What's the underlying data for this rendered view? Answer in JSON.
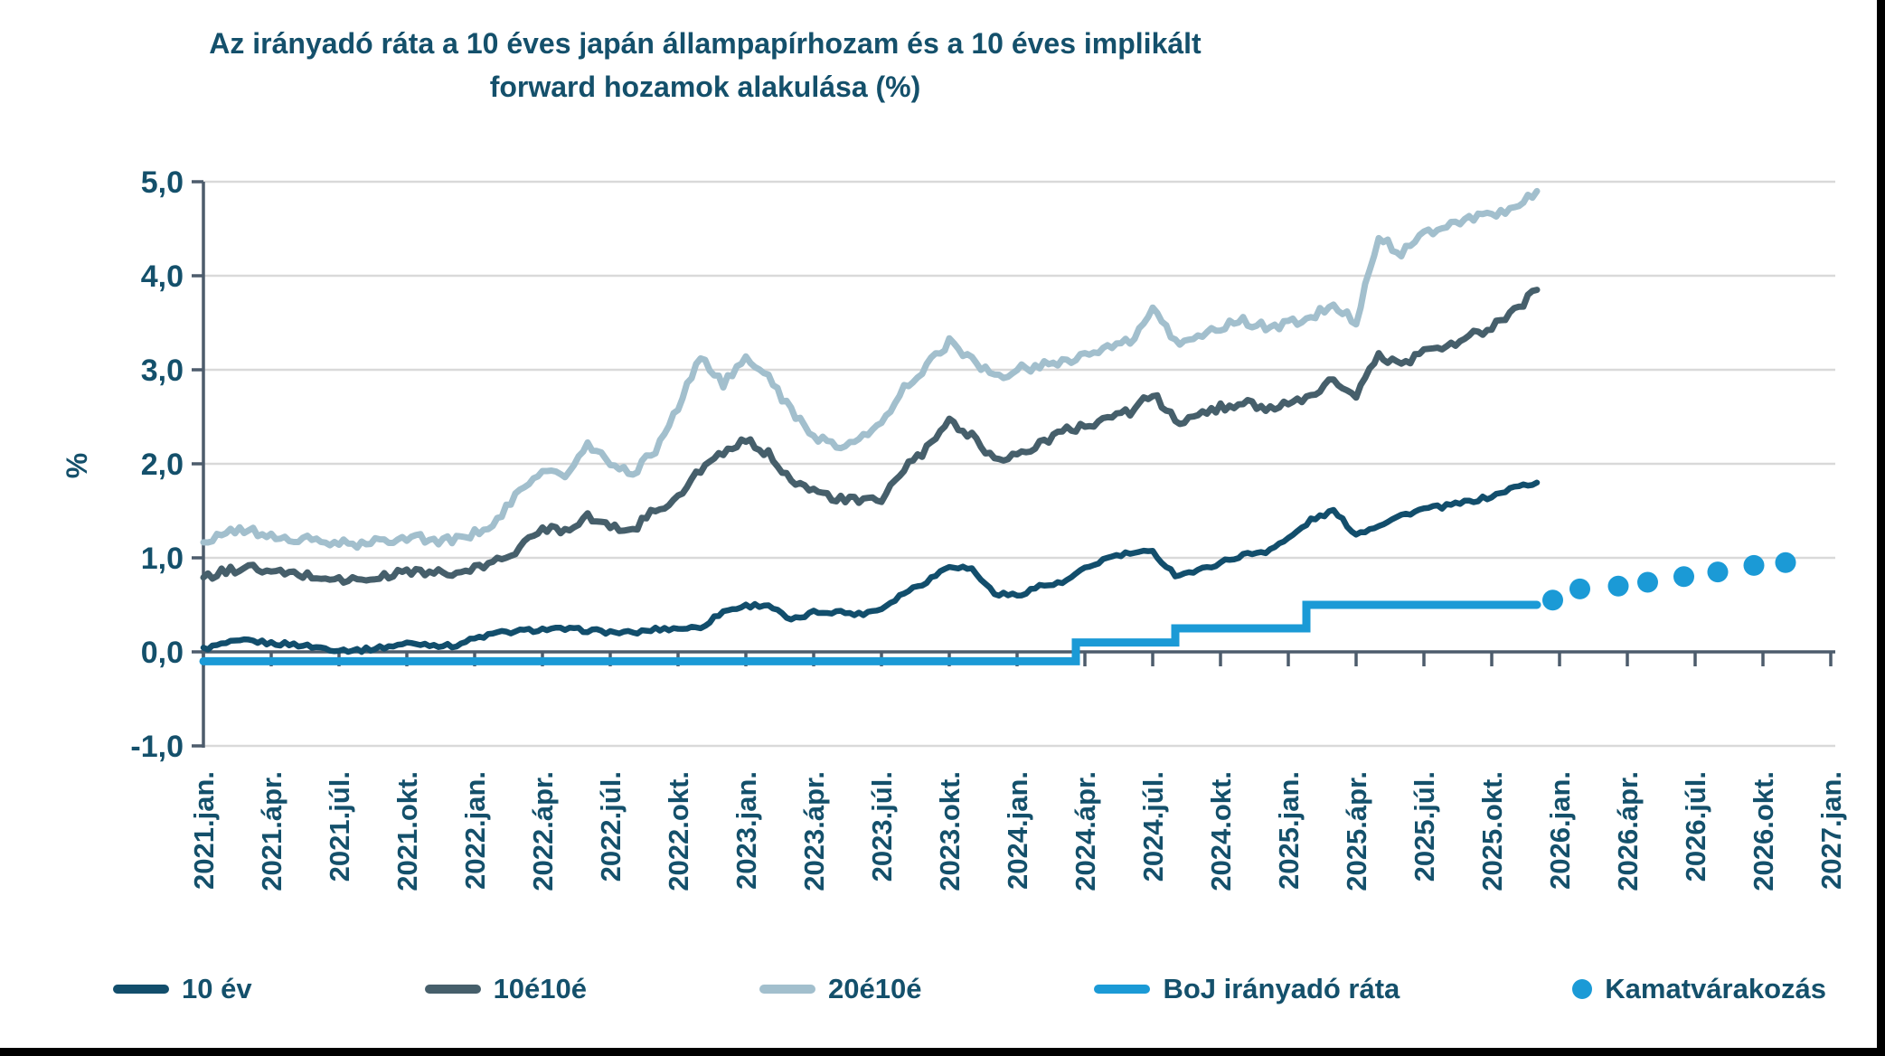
{
  "title": "Az irányadó ráta a 10 éves japán állampapírhozam és a 10 éves implikált\nforward hozamok alakulása (%)",
  "colors": {
    "title_text": "#14506b",
    "series_10y": "#124e6c",
    "series_10e10e": "#465f6b",
    "series_20e10e": "#a2bfcd",
    "boj_rate": "#1b9ad6",
    "expectation_dot": "#1b9ad6",
    "gridline": "#d9d9d9",
    "axis": "#4d5c6c",
    "background": "#ffffff",
    "edge_border": "#000000"
  },
  "y_axis": {
    "unit_label": "%",
    "tick_labels": [
      "5,0",
      "4,0",
      "3,0",
      "2,0",
      "1,0",
      "0,0",
      "-1,0"
    ],
    "tick_values": [
      5,
      4,
      3,
      2,
      1,
      0,
      -1
    ],
    "min": -1,
    "max": 5
  },
  "x_axis": {
    "tick_labels": [
      "2021.jan.",
      "2021.ápr.",
      "2021.júl.",
      "2021.okt.",
      "2022.jan.",
      "2022.ápr.",
      "2022.júl.",
      "2022.okt.",
      "2023.jan.",
      "2023.ápr.",
      "2023.júl.",
      "2023.okt.",
      "2024.jan.",
      "2024.ápr.",
      "2024.júl.",
      "2024.okt.",
      "2025.jan.",
      "2025.ápr.",
      "2025.júl.",
      "2025.okt.",
      "2026.jan.",
      "2026.ápr.",
      "2026.júl.",
      "2026.okt.",
      "2027.jan."
    ],
    "months_per_tick": 3
  },
  "legend": [
    {
      "label": "10 év",
      "swatch": "line",
      "color": "#124e6c"
    },
    {
      "label": "10é10é",
      "swatch": "line",
      "color": "#465f6b"
    },
    {
      "label": "20é10é",
      "swatch": "line",
      "color": "#a2bfcd"
    },
    {
      "label": "BoJ irányadó ráta",
      "swatch": "line",
      "color": "#1b9ad6"
    },
    {
      "label": "Kamatvárakozás",
      "swatch": "dot",
      "color": "#1b9ad6"
    }
  ],
  "chart_data": {
    "type": "line",
    "title": "Az irányadó ráta a 10 éves japán állampapírhozam és a 10 éves implikált forward hozamok alakulása (%)",
    "ylabel": "%",
    "ylim": [
      -1,
      5
    ],
    "grid": "horizontal",
    "legend_position": "bottom",
    "x_unit": "month",
    "x_start": "2021.jan",
    "x_end_of_history": "2025.dec",
    "series": [
      {
        "name": "10 év",
        "color": "#124e6c",
        "monthly_values": [
          0.03,
          0.09,
          0.12,
          0.09,
          0.08,
          0.05,
          0.02,
          0.02,
          0.05,
          0.09,
          0.08,
          0.06,
          0.14,
          0.2,
          0.22,
          0.24,
          0.24,
          0.23,
          0.21,
          0.2,
          0.24,
          0.25,
          0.26,
          0.43,
          0.49,
          0.5,
          0.33,
          0.42,
          0.43,
          0.4,
          0.46,
          0.63,
          0.75,
          0.92,
          0.88,
          0.62,
          0.6,
          0.7,
          0.73,
          0.88,
          1.0,
          1.05,
          1.06,
          0.82,
          0.86,
          0.95,
          1.03,
          1.07,
          1.2,
          1.4,
          1.5,
          1.25,
          1.35,
          1.45,
          1.52,
          1.55,
          1.6,
          1.65,
          1.75,
          1.8
        ]
      },
      {
        "name": "10é10é",
        "color": "#465f6b",
        "monthly_values": [
          0.78,
          0.86,
          0.9,
          0.84,
          0.83,
          0.8,
          0.77,
          0.76,
          0.8,
          0.86,
          0.85,
          0.82,
          0.88,
          0.97,
          1.1,
          1.32,
          1.3,
          1.45,
          1.32,
          1.3,
          1.52,
          1.63,
          1.95,
          2.1,
          2.25,
          2.1,
          1.85,
          1.7,
          1.63,
          1.6,
          1.62,
          1.95,
          2.15,
          2.45,
          2.3,
          2.05,
          2.1,
          2.2,
          2.35,
          2.4,
          2.5,
          2.55,
          2.75,
          2.45,
          2.5,
          2.6,
          2.65,
          2.6,
          2.62,
          2.7,
          2.9,
          2.72,
          3.15,
          3.05,
          3.2,
          3.25,
          3.35,
          3.45,
          3.62,
          3.85
        ]
      },
      {
        "name": "20é10é",
        "color": "#a2bfcd",
        "monthly_values": [
          1.17,
          1.26,
          1.3,
          1.22,
          1.2,
          1.18,
          1.15,
          1.14,
          1.18,
          1.23,
          1.2,
          1.18,
          1.26,
          1.4,
          1.7,
          1.95,
          1.85,
          2.2,
          2.0,
          1.9,
          2.15,
          2.6,
          3.15,
          2.85,
          3.1,
          2.95,
          2.55,
          2.3,
          2.2,
          2.25,
          2.42,
          2.8,
          3.05,
          3.3,
          3.1,
          2.92,
          3.0,
          3.05,
          3.1,
          3.15,
          3.22,
          3.3,
          3.62,
          3.3,
          3.35,
          3.45,
          3.52,
          3.45,
          3.5,
          3.55,
          3.7,
          3.52,
          4.4,
          4.25,
          4.45,
          4.55,
          4.6,
          4.65,
          4.72,
          4.9
        ]
      }
    ],
    "boj_policy_rate": {
      "name": "BoJ irányadó ráta",
      "color": "#1b9ad6",
      "steps": [
        {
          "from_month": 0,
          "to_month": 38.6,
          "rate": -0.1,
          "period": "2021.jan – 2024.már"
        },
        {
          "from_month": 38.6,
          "to_month": 43.0,
          "rate": 0.1,
          "period": "2024.már – 2024.júl"
        },
        {
          "from_month": 43.0,
          "to_month": 48.8,
          "rate": 0.25,
          "period": "2024.aug – 2025.jan"
        },
        {
          "from_month": 48.8,
          "to_month": 59.0,
          "rate": 0.5,
          "period": "2025.jan – 2025.dec"
        }
      ]
    },
    "rate_expectations": {
      "name": "Kamatvárakozás",
      "color": "#1b9ad6",
      "points": [
        {
          "month_index": 59.7,
          "date": "2025.dec",
          "value": 0.55
        },
        {
          "month_index": 60.9,
          "date": "2026.jan",
          "value": 0.67
        },
        {
          "month_index": 62.6,
          "date": "2026.már",
          "value": 0.7
        },
        {
          "month_index": 63.9,
          "date": "2026.ápr",
          "value": 0.74
        },
        {
          "month_index": 65.5,
          "date": "2026.jún",
          "value": 0.8
        },
        {
          "month_index": 67.0,
          "date": "2026.júl",
          "value": 0.85
        },
        {
          "month_index": 68.6,
          "date": "2026.szept",
          "value": 0.92
        },
        {
          "month_index": 70.0,
          "date": "2026.okt",
          "value": 0.95
        }
      ]
    }
  }
}
